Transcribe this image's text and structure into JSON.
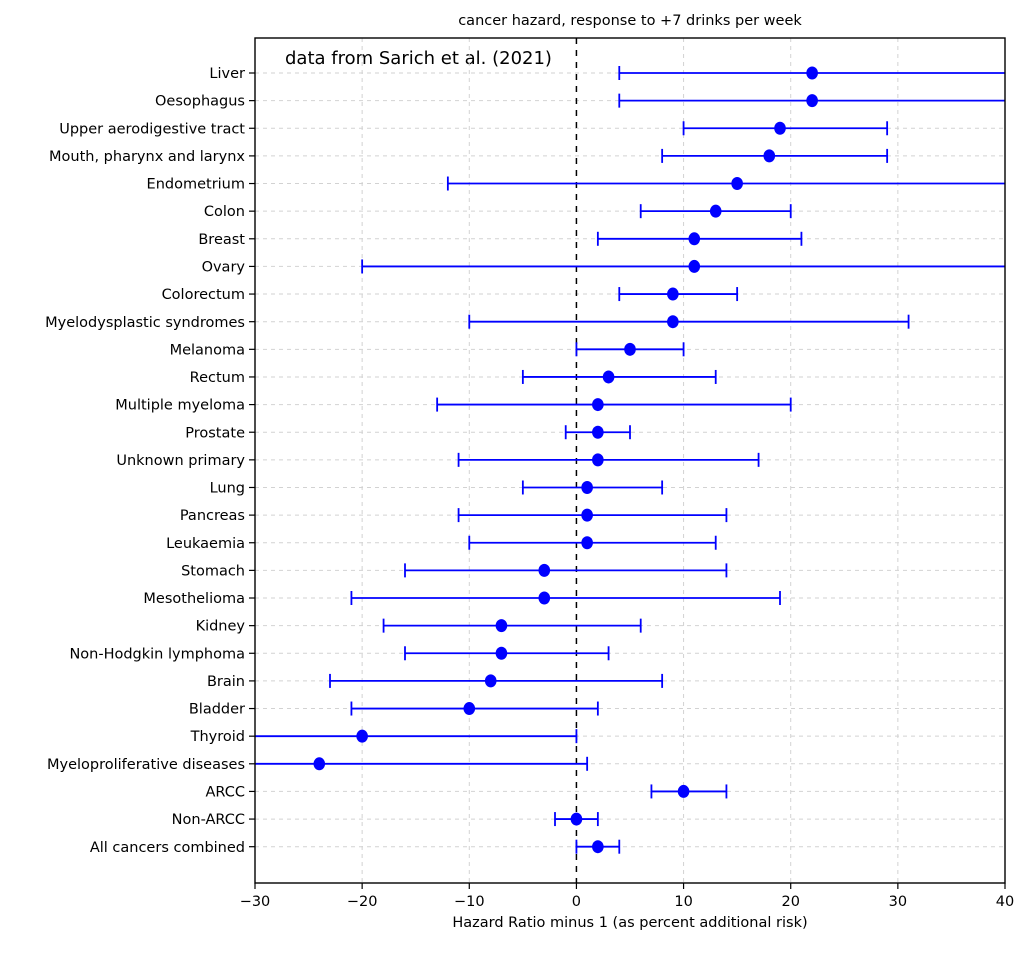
{
  "page": {
    "background": "#ffffff"
  },
  "chart_data": {
    "type": "scatter",
    "variant": "forest-plot-dot-with-error-bars",
    "title": "cancer hazard, response to +7 drinks per week",
    "annotation": "data from Sarich et al. (2021)",
    "xlabel": "Hazard Ratio minus 1 (as percent additional risk)",
    "ylabel": "",
    "xlim": [
      -30,
      40
    ],
    "xticks": [
      -30,
      -20,
      -10,
      0,
      10,
      20,
      30,
      40
    ],
    "xtick_labels": [
      "−30",
      "−20",
      "−10",
      "0",
      "10",
      "20",
      "30",
      "40"
    ],
    "zero_reference_line": 0,
    "grid": true,
    "legend": false,
    "colors": {
      "marker": "#0000ff",
      "errorbar": "#0000ff",
      "grid": "#d2d2d2",
      "zero_line": "#000000",
      "spine": "#000000",
      "text": "#000000",
      "background": "#ffffff"
    },
    "rows": [
      {
        "label": "Liver",
        "value": 22,
        "lo": 4,
        "hi": 40,
        "lo_clipped": false,
        "hi_clipped": true
      },
      {
        "label": "Oesophagus",
        "value": 22,
        "lo": 4,
        "hi": 40,
        "lo_clipped": false,
        "hi_clipped": true
      },
      {
        "label": "Upper aerodigestive tract",
        "value": 19,
        "lo": 10,
        "hi": 29,
        "lo_clipped": false,
        "hi_clipped": false
      },
      {
        "label": "Mouth, pharynx and larynx",
        "value": 18,
        "lo": 8,
        "hi": 29,
        "lo_clipped": false,
        "hi_clipped": false
      },
      {
        "label": "Endometrium",
        "value": 15,
        "lo": -12,
        "hi": 40,
        "lo_clipped": false,
        "hi_clipped": true
      },
      {
        "label": "Colon",
        "value": 13,
        "lo": 6,
        "hi": 20,
        "lo_clipped": false,
        "hi_clipped": false
      },
      {
        "label": "Breast",
        "value": 11,
        "lo": 2,
        "hi": 21,
        "lo_clipped": false,
        "hi_clipped": false
      },
      {
        "label": "Ovary",
        "value": 11,
        "lo": -20,
        "hi": 40,
        "lo_clipped": false,
        "hi_clipped": true
      },
      {
        "label": "Colorectum",
        "value": 9,
        "lo": 4,
        "hi": 15,
        "lo_clipped": false,
        "hi_clipped": false
      },
      {
        "label": "Myelodysplastic syndromes",
        "value": 9,
        "lo": -10,
        "hi": 31,
        "lo_clipped": false,
        "hi_clipped": false
      },
      {
        "label": "Melanoma",
        "value": 5,
        "lo": 0,
        "hi": 10,
        "lo_clipped": false,
        "hi_clipped": false
      },
      {
        "label": "Rectum",
        "value": 3,
        "lo": -5,
        "hi": 13,
        "lo_clipped": false,
        "hi_clipped": false
      },
      {
        "label": "Multiple myeloma",
        "value": 2,
        "lo": -13,
        "hi": 20,
        "lo_clipped": false,
        "hi_clipped": false
      },
      {
        "label": "Prostate",
        "value": 2,
        "lo": -1,
        "hi": 5,
        "lo_clipped": false,
        "hi_clipped": false
      },
      {
        "label": "Unknown primary",
        "value": 2,
        "lo": -11,
        "hi": 17,
        "lo_clipped": false,
        "hi_clipped": false
      },
      {
        "label": "Lung",
        "value": 1,
        "lo": -5,
        "hi": 8,
        "lo_clipped": false,
        "hi_clipped": false
      },
      {
        "label": "Pancreas",
        "value": 1,
        "lo": -11,
        "hi": 14,
        "lo_clipped": false,
        "hi_clipped": false
      },
      {
        "label": "Leukaemia",
        "value": 1,
        "lo": -10,
        "hi": 13,
        "lo_clipped": false,
        "hi_clipped": false
      },
      {
        "label": "Stomach",
        "value": -3,
        "lo": -16,
        "hi": 14,
        "lo_clipped": false,
        "hi_clipped": false
      },
      {
        "label": "Mesothelioma",
        "value": -3,
        "lo": -21,
        "hi": 19,
        "lo_clipped": false,
        "hi_clipped": false
      },
      {
        "label": "Kidney",
        "value": -7,
        "lo": -18,
        "hi": 6,
        "lo_clipped": false,
        "hi_clipped": false
      },
      {
        "label": "Non-Hodgkin lymphoma",
        "value": -7,
        "lo": -16,
        "hi": 3,
        "lo_clipped": false,
        "hi_clipped": false
      },
      {
        "label": "Brain",
        "value": -8,
        "lo": -23,
        "hi": 8,
        "lo_clipped": false,
        "hi_clipped": false
      },
      {
        "label": "Bladder",
        "value": -10,
        "lo": -21,
        "hi": 2,
        "lo_clipped": false,
        "hi_clipped": false
      },
      {
        "label": "Thyroid",
        "value": -20,
        "lo": -30,
        "hi": 0,
        "lo_clipped": true,
        "hi_clipped": false
      },
      {
        "label": "Myeloproliferative diseases",
        "value": -24,
        "lo": -30,
        "hi": 1,
        "lo_clipped": true,
        "hi_clipped": false
      },
      {
        "label": "ARCC",
        "value": 10,
        "lo": 7,
        "hi": 14,
        "lo_clipped": false,
        "hi_clipped": false
      },
      {
        "label": "Non-ARCC",
        "value": 0,
        "lo": -2,
        "hi": 2,
        "lo_clipped": false,
        "hi_clipped": false
      },
      {
        "label": "All cancers combined",
        "value": 2,
        "lo": 0,
        "hi": 4,
        "lo_clipped": false,
        "hi_clipped": false
      }
    ]
  }
}
